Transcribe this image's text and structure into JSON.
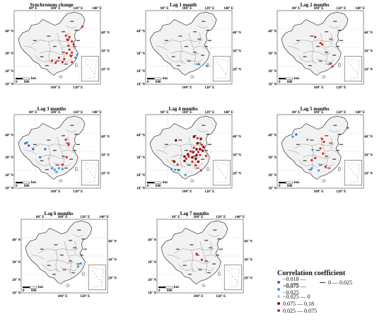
{
  "panels": [
    {
      "title": "Synchronous change"
    },
    {
      "title": "Lag 1 month"
    },
    {
      "title": "Lag 2 months"
    },
    {
      "title": "Lag 3 months"
    },
    {
      "title": "Lag 4 months"
    },
    {
      "title": "Lag 5 months"
    },
    {
      "title": "Lag 6 months"
    },
    {
      "title": "Lag 7 months"
    }
  ],
  "axes": {
    "top_longitudes": [
      "80° E",
      "100° E",
      "120° E",
      "140° E"
    ],
    "bottom_longitudes": [
      "100° E",
      "120° E"
    ],
    "left_latitudes": [
      "40° N",
      "30° N",
      "20° N",
      "10° N"
    ],
    "right_latitudes": [
      "40° N",
      "30° N",
      "20° N"
    ]
  },
  "scalebar": {
    "unit": "km",
    "start": "0",
    "end": "800"
  },
  "legend": {
    "title": "Correlation coefficient",
    "items": [
      {
        "label": "−0.018 — −0.075",
        "color": "#2f66c9",
        "symbol": "dot"
      },
      {
        "label": "−0.075 — −0.025",
        "color": "#3a9bd8",
        "symbol": "dot"
      },
      {
        "label": "−0.025 — 0",
        "color": "#9ec9ea",
        "symbol": "dot"
      },
      {
        "label": "0.075 — 0.18",
        "color": "#8b0a0a",
        "symbol": "dot"
      },
      {
        "label": "0.025 — 0.075",
        "color": "#e02020",
        "symbol": "dot"
      },
      {
        "label": "0 — 0.025",
        "color": "#333333",
        "symbol": "dash"
      }
    ]
  },
  "stations": [
    {
      "panel": 0,
      "points": [
        [
          0.6,
          0.34,
          4
        ],
        [
          0.64,
          0.36,
          4
        ],
        [
          0.62,
          0.4,
          4
        ],
        [
          0.67,
          0.42,
          4
        ],
        [
          0.69,
          0.46,
          4
        ],
        [
          0.63,
          0.48,
          4
        ],
        [
          0.64,
          0.53,
          4
        ],
        [
          0.67,
          0.57,
          4
        ],
        [
          0.61,
          0.58,
          4
        ],
        [
          0.66,
          0.62,
          4
        ],
        [
          0.52,
          0.64,
          4
        ],
        [
          0.58,
          0.66,
          4
        ],
        [
          0.67,
          0.7,
          4
        ],
        [
          0.44,
          0.68,
          4
        ],
        [
          0.48,
          0.71,
          4
        ],
        [
          0.56,
          0.7,
          4
        ],
        [
          0.71,
          0.64,
          1
        ],
        [
          0.73,
          0.6,
          1
        ],
        [
          0.79,
          0.22,
          4
        ]
      ]
    },
    {
      "panel": 1,
      "points": [
        [
          0.62,
          0.73,
          1
        ],
        [
          0.71,
          0.75,
          1
        ]
      ]
    },
    {
      "panel": 2,
      "points": [
        [
          0.44,
          0.36,
          4
        ],
        [
          0.5,
          0.44,
          4
        ],
        [
          0.52,
          0.46,
          4
        ],
        [
          0.62,
          0.72,
          4
        ],
        [
          0.64,
          0.76,
          4
        ]
      ]
    },
    {
      "panel": 3,
      "points": [
        [
          0.13,
          0.39,
          0
        ],
        [
          0.17,
          0.42,
          0
        ],
        [
          0.22,
          0.47,
          0
        ],
        [
          0.36,
          0.47,
          0
        ],
        [
          0.15,
          0.38,
          1
        ],
        [
          0.6,
          0.34,
          4
        ],
        [
          0.63,
          0.41,
          4
        ],
        [
          0.61,
          0.58,
          4
        ],
        [
          0.56,
          0.68,
          4
        ],
        [
          0.44,
          0.73,
          1
        ],
        [
          0.47,
          0.75,
          1
        ],
        [
          0.52,
          0.73,
          1
        ],
        [
          0.56,
          0.74,
          1
        ],
        [
          0.49,
          0.78,
          1
        ],
        [
          0.3,
          0.58,
          0
        ],
        [
          0.4,
          0.6,
          2
        ]
      ]
    },
    {
      "panel": 4,
      "points": [
        [
          0.35,
          0.35,
          3
        ],
        [
          0.56,
          0.3,
          3
        ],
        [
          0.6,
          0.32,
          4
        ],
        [
          0.64,
          0.33,
          3
        ],
        [
          0.6,
          0.39,
          3
        ],
        [
          0.65,
          0.41,
          4
        ],
        [
          0.67,
          0.44,
          3
        ],
        [
          0.56,
          0.45,
          4
        ],
        [
          0.59,
          0.47,
          3
        ],
        [
          0.63,
          0.47,
          3
        ],
        [
          0.52,
          0.5,
          4
        ],
        [
          0.55,
          0.51,
          3
        ],
        [
          0.61,
          0.51,
          4
        ],
        [
          0.66,
          0.49,
          3
        ],
        [
          0.49,
          0.54,
          3
        ],
        [
          0.59,
          0.55,
          3
        ],
        [
          0.63,
          0.55,
          4
        ],
        [
          0.45,
          0.57,
          3
        ],
        [
          0.5,
          0.57,
          4
        ],
        [
          0.54,
          0.58,
          3
        ],
        [
          0.47,
          0.6,
          4
        ],
        [
          0.58,
          0.6,
          3
        ],
        [
          0.54,
          0.64,
          4
        ],
        [
          0.61,
          0.64,
          3
        ],
        [
          0.7,
          0.56,
          4
        ],
        [
          0.45,
          0.63,
          3
        ],
        [
          0.33,
          0.64,
          3
        ],
        [
          0.37,
          0.68,
          4
        ],
        [
          0.3,
          0.74,
          1
        ],
        [
          0.34,
          0.75,
          1
        ],
        [
          0.38,
          0.76,
          1
        ],
        [
          0.46,
          0.82,
          1
        ],
        [
          0.58,
          0.69,
          4
        ],
        [
          0.64,
          0.76,
          4
        ]
      ]
    },
    {
      "panel": 5,
      "points": [
        [
          0.18,
          0.3,
          1
        ],
        [
          0.22,
          0.27,
          0
        ],
        [
          0.35,
          0.34,
          1
        ],
        [
          0.52,
          0.33,
          4
        ],
        [
          0.54,
          0.37,
          4
        ],
        [
          0.41,
          0.48,
          1
        ],
        [
          0.5,
          0.46,
          4
        ],
        [
          0.53,
          0.53,
          4
        ],
        [
          0.44,
          0.59,
          4
        ],
        [
          0.4,
          0.62,
          4
        ],
        [
          0.56,
          0.71,
          4
        ],
        [
          0.4,
          0.73,
          1
        ],
        [
          0.48,
          0.76,
          1
        ],
        [
          0.82,
          0.18,
          1
        ]
      ]
    },
    {
      "panel": 6,
      "points": [
        [
          0.69,
          0.6,
          1
        ],
        [
          0.66,
          0.64,
          1
        ]
      ]
    },
    {
      "panel": 7,
      "points": [
        [
          0.46,
          0.47,
          4
        ],
        [
          0.52,
          0.55,
          4
        ]
      ]
    }
  ]
}
